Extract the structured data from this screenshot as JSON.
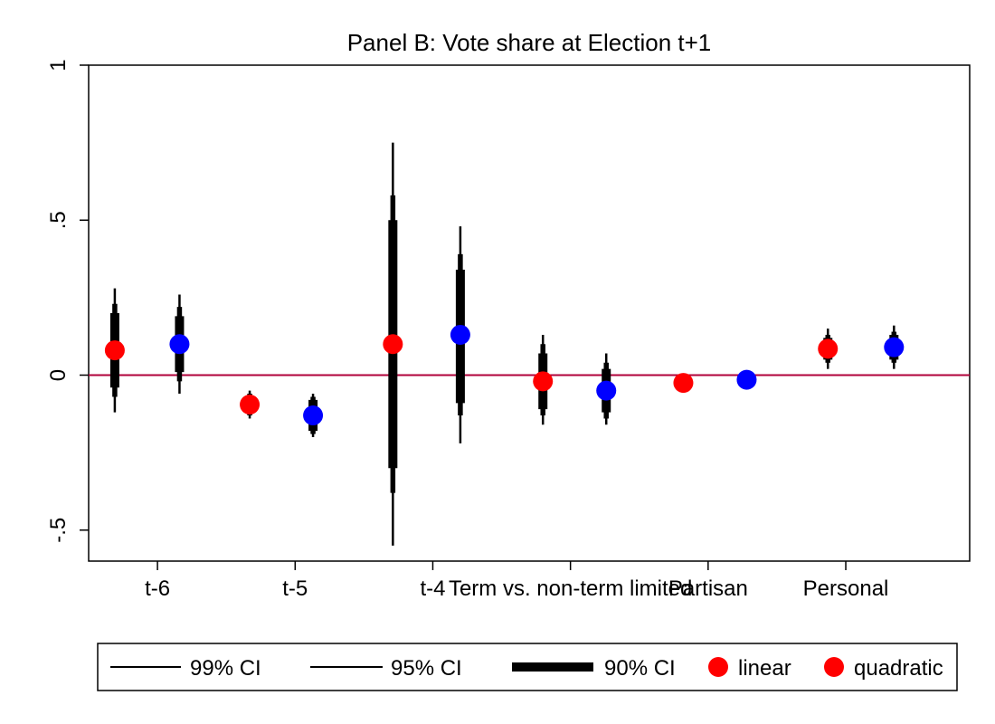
{
  "chart_data": {
    "type": "scatter",
    "title": "Panel B: Vote share at Election t+1",
    "xlabel": "",
    "ylabel": "",
    "ylim": [
      -0.6,
      1.0
    ],
    "yticks": [
      {
        "value": 1,
        "label": "1"
      },
      {
        "value": 0.5,
        "label": ".5"
      },
      {
        "value": 0,
        "label": "0"
      },
      {
        "value": -0.5,
        "label": "-.5"
      }
    ],
    "xlim": [
      0.5,
      6.9
    ],
    "xticks": [
      {
        "value": 1,
        "label": "t-6"
      },
      {
        "value": 2,
        "label": "t-5"
      },
      {
        "value": 3,
        "label": "t-4"
      },
      {
        "value": 4,
        "label": "Term vs. non-term limited"
      },
      {
        "value": 5,
        "label": "Partisan"
      },
      {
        "value": 6,
        "label": "Personal"
      }
    ],
    "reference_line": {
      "y": 0,
      "color": "#b0003a"
    },
    "grid": false,
    "legend_position": "bottom",
    "legend": [
      {
        "label": "99% CI",
        "kind": "thin-line"
      },
      {
        "label": "95% CI",
        "kind": "medium-line"
      },
      {
        "label": "90% CI",
        "kind": "thick-bar"
      },
      {
        "label": "linear",
        "kind": "marker",
        "color": "#ff0000"
      },
      {
        "label": "quadratic",
        "kind": "marker",
        "color": "#ff0000"
      }
    ],
    "points": [
      {
        "x": 0.69,
        "y": 0.08,
        "ci99": [
          -0.12,
          0.28
        ],
        "ci95": [
          -0.07,
          0.23
        ],
        "ci90": [
          -0.04,
          0.2
        ],
        "color": "#ff0000"
      },
      {
        "x": 1.16,
        "y": 0.1,
        "ci99": [
          -0.06,
          0.26
        ],
        "ci95": [
          -0.02,
          0.22
        ],
        "ci90": [
          0.01,
          0.19
        ],
        "color": "#0000ff"
      },
      {
        "x": 1.67,
        "y": -0.095,
        "ci99": [
          -0.14,
          -0.05
        ],
        "ci95": [
          -0.13,
          -0.06
        ],
        "ci90": [
          -0.12,
          -0.07
        ],
        "color": "#ff0000"
      },
      {
        "x": 2.13,
        "y": -0.13,
        "ci99": [
          -0.2,
          -0.06
        ],
        "ci95": [
          -0.19,
          -0.07
        ],
        "ci90": [
          -0.18,
          -0.08
        ],
        "color": "#0000ff"
      },
      {
        "x": 2.71,
        "y": 0.1,
        "ci99": [
          -0.55,
          0.75
        ],
        "ci95": [
          -0.38,
          0.58
        ],
        "ci90": [
          -0.3,
          0.5
        ],
        "color": "#ff0000"
      },
      {
        "x": 3.2,
        "y": 0.13,
        "ci99": [
          -0.22,
          0.48
        ],
        "ci95": [
          -0.13,
          0.39
        ],
        "ci90": [
          -0.09,
          0.34
        ],
        "color": "#0000ff"
      },
      {
        "x": 3.8,
        "y": -0.02,
        "ci99": [
          -0.16,
          0.13
        ],
        "ci95": [
          -0.13,
          0.1
        ],
        "ci90": [
          -0.11,
          0.07
        ],
        "color": "#ff0000"
      },
      {
        "x": 4.26,
        "y": -0.05,
        "ci99": [
          -0.16,
          0.07
        ],
        "ci95": [
          -0.14,
          0.04
        ],
        "ci90": [
          -0.12,
          0.02
        ],
        "color": "#0000ff"
      },
      {
        "x": 4.82,
        "y": -0.025,
        "ci99": [
          -0.05,
          0.0
        ],
        "ci95": [
          -0.045,
          -0.005
        ],
        "ci90": [
          -0.04,
          -0.01
        ],
        "color": "#ff0000"
      },
      {
        "x": 5.28,
        "y": -0.015,
        "ci99": [
          -0.04,
          0.01
        ],
        "ci95": [
          -0.035,
          0.005
        ],
        "ci90": [
          -0.03,
          0.0
        ],
        "color": "#0000ff"
      },
      {
        "x": 5.87,
        "y": 0.085,
        "ci99": [
          0.02,
          0.15
        ],
        "ci95": [
          0.04,
          0.13
        ],
        "ci90": [
          0.05,
          0.12
        ],
        "color": "#ff0000"
      },
      {
        "x": 6.35,
        "y": 0.09,
        "ci99": [
          0.02,
          0.16
        ],
        "ci95": [
          0.04,
          0.14
        ],
        "ci90": [
          0.05,
          0.13
        ],
        "color": "#0000ff"
      }
    ]
  }
}
